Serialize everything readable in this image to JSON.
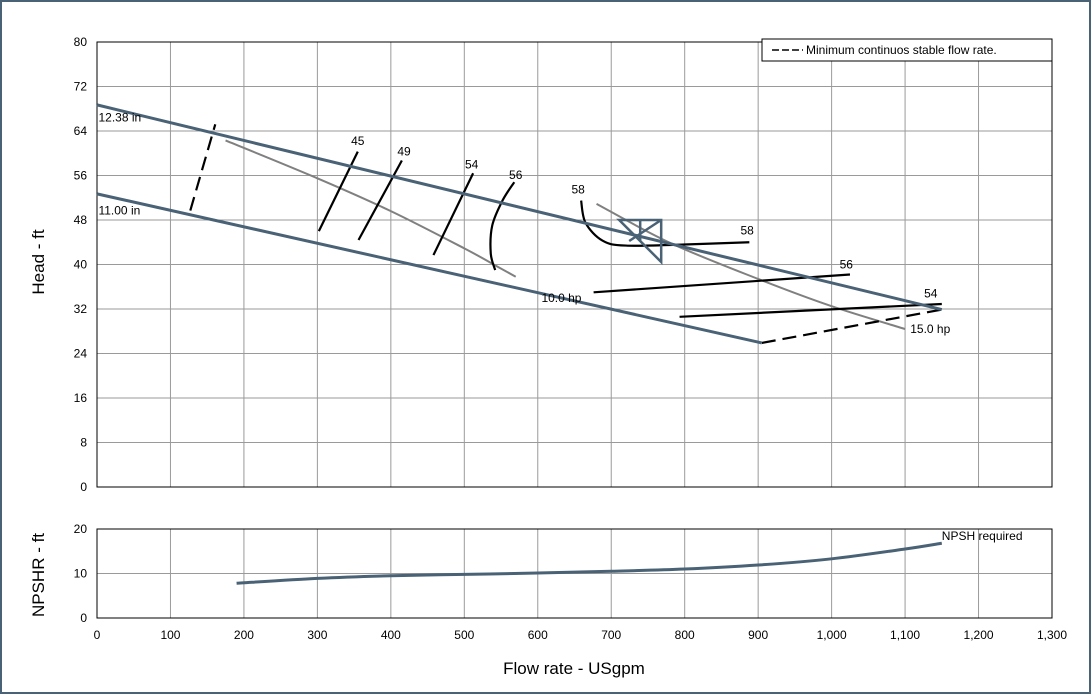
{
  "chart_data": [
    {
      "type": "line",
      "title": "",
      "xlabel": "",
      "ylabel": "Head - ft",
      "xlim": [
        0,
        1300
      ],
      "ylim": [
        0,
        80
      ],
      "yticks": [
        "0",
        "8",
        "16",
        "24",
        "32",
        "40",
        "48",
        "56",
        "64",
        "72",
        "80"
      ],
      "grid": true,
      "legend": {
        "position": "top-right",
        "entries": [
          "Minimum continuos stable flow rate."
        ]
      },
      "series": [
        {
          "kind": "impeller",
          "name": "12.38 in",
          "points": [
            [
              0,
              68.7
            ],
            [
              1150,
              31.9
            ]
          ]
        },
        {
          "kind": "impeller",
          "name": "11.00 in",
          "points": [
            [
              0,
              52.7
            ],
            [
              905,
              25.9
            ]
          ]
        },
        {
          "kind": "power",
          "name": "10.0 hp",
          "points": [
            [
              175,
              62.3
            ],
            [
              300,
              55.5
            ],
            [
              400,
              49.6
            ],
            [
              500,
              42.9
            ],
            [
              540,
              40.0
            ],
            [
              570,
              37.8
            ]
          ]
        },
        {
          "kind": "power",
          "name": "15.0 hp",
          "points": [
            [
              680,
              50.9
            ],
            [
              780,
              43.9
            ],
            [
              900,
              37.4
            ],
            [
              1000,
              32.5
            ],
            [
              1100,
              28.4
            ]
          ]
        },
        {
          "kind": "efficiency",
          "name": "45",
          "points": [
            [
              302,
              46.0
            ],
            [
              355,
              60.3
            ]
          ]
        },
        {
          "kind": "efficiency",
          "name": "49",
          "points": [
            [
              356,
              44.4
            ],
            [
              415,
              58.7
            ]
          ]
        },
        {
          "kind": "efficiency",
          "name": "54",
          "points": [
            [
              458,
              41.7
            ],
            [
              512,
              56.4
            ]
          ]
        },
        {
          "kind": "efficiency",
          "name": "56",
          "points": [
            [
              542,
              39.0
            ],
            [
              536,
              42.0
            ],
            [
              538,
              47.0
            ],
            [
              552,
              51.5
            ],
            [
              568,
              54.8
            ]
          ]
        },
        {
          "kind": "efficiency",
          "name": "58",
          "points": [
            [
              659,
              51.5
            ],
            [
              665,
              47.5
            ],
            [
              688,
              44.3
            ],
            [
              720,
              43.4
            ],
            [
              800,
              43.6
            ],
            [
              888,
              44.0
            ]
          ]
        },
        {
          "kind": "efficiency",
          "name": "56",
          "points": [
            [
              676,
              35.0
            ],
            [
              1025,
              38.2
            ]
          ]
        },
        {
          "kind": "efficiency",
          "name": "54",
          "points": [
            [
              793,
              30.6
            ],
            [
              1150,
              32.9
            ]
          ]
        },
        {
          "kind": "min-flow",
          "name": "",
          "points": [
            [
              127,
              49.7
            ],
            [
              161,
              65.2
            ]
          ]
        },
        {
          "kind": "min-flow",
          "name": "",
          "points": [
            [
              905,
              25.9
            ],
            [
              1150,
              31.9
            ]
          ]
        }
      ],
      "labels": [
        {
          "text": "12.38 in",
          "x": 2,
          "y": 65.7,
          "color": "#000000"
        },
        {
          "text": "11.00 in",
          "x": 2,
          "y": 49.0,
          "color": "#000000"
        },
        {
          "text": "45",
          "x": 355,
          "y": 61.5,
          "color": "#000000"
        },
        {
          "text": "49",
          "x": 418,
          "y": 59.6,
          "color": "#000000"
        },
        {
          "text": "54",
          "x": 510,
          "y": 57.3,
          "color": "#000000"
        },
        {
          "text": "56",
          "x": 570,
          "y": 55.4,
          "color": "#000000"
        },
        {
          "text": "58",
          "x": 655,
          "y": 52.8,
          "color": "#000000"
        },
        {
          "text": "58",
          "x": 885,
          "y": 45.4,
          "color": "#000000"
        },
        {
          "text": "56",
          "x": 1020,
          "y": 39.3,
          "color": "#000000"
        },
        {
          "text": "54",
          "x": 1135,
          "y": 34.1,
          "color": "#000000"
        },
        {
          "text": "10.0 hp",
          "x": 605,
          "y": 33.3,
          "color": "#808080"
        },
        {
          "text": "15.0 hp",
          "x": 1107,
          "y": 27.7,
          "color": "#808080"
        }
      ],
      "bep_marker": {
        "x": 768,
        "y": 48
      }
    },
    {
      "type": "line",
      "title": "",
      "xlabel": "Flow rate - USgpm",
      "ylabel": "NPSHR - ft",
      "xlim": [
        0,
        1300
      ],
      "ylim": [
        0,
        20
      ],
      "xticks": [
        "0",
        "100",
        "200",
        "300",
        "400",
        "500",
        "600",
        "700",
        "800",
        "900",
        "1,000",
        "1,100",
        "1,200",
        "1,300"
      ],
      "yticks": [
        "0",
        "10",
        "20"
      ],
      "grid": true,
      "series": [
        {
          "kind": "npsh",
          "name": "NPSH required",
          "points": [
            [
              190,
              7.8
            ],
            [
              300,
              8.9
            ],
            [
              400,
              9.5
            ],
            [
              500,
              9.8
            ],
            [
              600,
              10.1
            ],
            [
              700,
              10.5
            ],
            [
              800,
              11.0
            ],
            [
              900,
              11.9
            ],
            [
              1000,
              13.3
            ],
            [
              1100,
              15.5
            ],
            [
              1150,
              16.8
            ]
          ]
        }
      ],
      "labels": [
        {
          "text": "NPSH required",
          "x": 1150,
          "y": 17.5,
          "color": "#000000"
        }
      ]
    }
  ],
  "colors": {
    "impeller": "#4a6276",
    "power": "#808080",
    "efficiency": "#000000",
    "grid": "#9a9a9a",
    "frame": "#4a6276"
  }
}
